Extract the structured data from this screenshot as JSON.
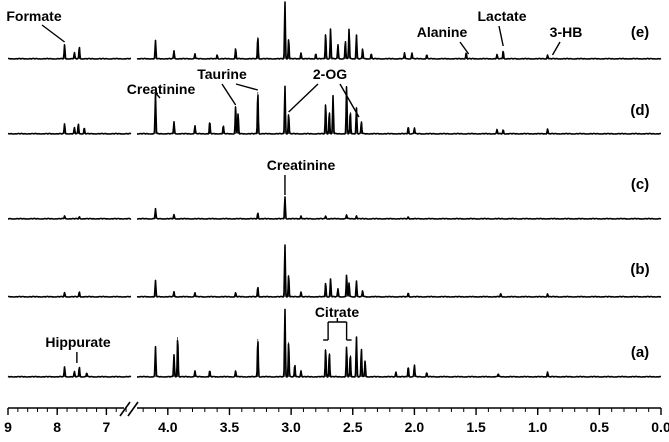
{
  "chart_data": {
    "type": "line",
    "title": "",
    "xlabel": "",
    "ylabel": "",
    "x_axis": {
      "reversed": true,
      "broken": true,
      "segments": [
        {
          "from": 9.0,
          "to": 6.5,
          "ticks": [
            "9",
            "8",
            "7"
          ],
          "tick_values": [
            9,
            8,
            7
          ]
        },
        {
          "from": 4.25,
          "to": 0.0,
          "ticks": [
            "4.0",
            "3.5",
            "3.0",
            "2.5",
            "2.0",
            "1.5",
            "1.0",
            "0.5",
            "0.0"
          ],
          "tick_values": [
            4.0,
            3.5,
            3.0,
            2.5,
            2.0,
            1.5,
            1.0,
            0.5,
            0.0
          ]
        }
      ]
    },
    "series": [
      {
        "name": "(e)",
        "peaks": [
          [
            7.85,
            14
          ],
          [
            7.65,
            6
          ],
          [
            7.55,
            12
          ],
          [
            4.1,
            18
          ],
          [
            3.95,
            8
          ],
          [
            3.78,
            5
          ],
          [
            3.6,
            4
          ],
          [
            3.45,
            10
          ],
          [
            3.27,
            22
          ],
          [
            3.05,
            57
          ],
          [
            3.02,
            20
          ],
          [
            2.92,
            6
          ],
          [
            2.8,
            5
          ],
          [
            2.72,
            25
          ],
          [
            2.68,
            30
          ],
          [
            2.62,
            14
          ],
          [
            2.56,
            18
          ],
          [
            2.53,
            30
          ],
          [
            2.47,
            24
          ],
          [
            2.42,
            10
          ],
          [
            2.35,
            5
          ],
          [
            2.08,
            6
          ],
          [
            2.02,
            6
          ],
          [
            1.9,
            4
          ],
          [
            1.58,
            6
          ],
          [
            1.33,
            4
          ],
          [
            1.28,
            8
          ],
          [
            0.92,
            4
          ]
        ]
      },
      {
        "name": "(d)",
        "peaks": [
          [
            7.85,
            10
          ],
          [
            7.65,
            6
          ],
          [
            7.57,
            10
          ],
          [
            7.45,
            6
          ],
          [
            4.1,
            40
          ],
          [
            3.95,
            12
          ],
          [
            3.78,
            8
          ],
          [
            3.66,
            12
          ],
          [
            3.55,
            8
          ],
          [
            3.45,
            28
          ],
          [
            3.43,
            20
          ],
          [
            3.27,
            42
          ],
          [
            3.05,
            48
          ],
          [
            3.02,
            20
          ],
          [
            2.72,
            30
          ],
          [
            2.69,
            22
          ],
          [
            2.66,
            38
          ],
          [
            2.55,
            48
          ],
          [
            2.52,
            22
          ],
          [
            2.47,
            26
          ],
          [
            2.43,
            12
          ],
          [
            2.05,
            7
          ],
          [
            2.0,
            6
          ],
          [
            1.33,
            4
          ],
          [
            1.28,
            4
          ],
          [
            0.92,
            5
          ]
        ]
      },
      {
        "name": "(c)",
        "peaks": [
          [
            7.85,
            3
          ],
          [
            7.55,
            2
          ],
          [
            4.1,
            10
          ],
          [
            3.95,
            4
          ],
          [
            3.27,
            6
          ],
          [
            3.05,
            22
          ],
          [
            2.92,
            3
          ],
          [
            2.72,
            3
          ],
          [
            2.55,
            4
          ],
          [
            2.47,
            3
          ],
          [
            2.05,
            2
          ]
        ]
      },
      {
        "name": "(b)",
        "peaks": [
          [
            7.85,
            4
          ],
          [
            7.55,
            5
          ],
          [
            4.1,
            16
          ],
          [
            3.95,
            5
          ],
          [
            3.78,
            4
          ],
          [
            3.45,
            4
          ],
          [
            3.27,
            10
          ],
          [
            3.05,
            52
          ],
          [
            3.02,
            22
          ],
          [
            2.92,
            5
          ],
          [
            2.72,
            14
          ],
          [
            2.68,
            18
          ],
          [
            2.62,
            8
          ],
          [
            2.55,
            22
          ],
          [
            2.53,
            14
          ],
          [
            2.47,
            16
          ],
          [
            2.42,
            6
          ],
          [
            2.05,
            4
          ],
          [
            1.3,
            3
          ],
          [
            0.92,
            3
          ]
        ]
      },
      {
        "name": "(a)",
        "peaks": [
          [
            7.85,
            10
          ],
          [
            7.55,
            10
          ],
          [
            7.65,
            5
          ],
          [
            7.4,
            4
          ],
          [
            4.1,
            30
          ],
          [
            3.95,
            22
          ],
          [
            3.92,
            40
          ],
          [
            3.78,
            6
          ],
          [
            3.66,
            6
          ],
          [
            3.45,
            6
          ],
          [
            3.27,
            38
          ],
          [
            3.05,
            68
          ],
          [
            3.02,
            35
          ],
          [
            2.97,
            12
          ],
          [
            2.92,
            6
          ],
          [
            2.72,
            28
          ],
          [
            2.69,
            24
          ],
          [
            2.55,
            30
          ],
          [
            2.52,
            22
          ],
          [
            2.47,
            40
          ],
          [
            2.43,
            28
          ],
          [
            2.4,
            16
          ],
          [
            2.15,
            5
          ],
          [
            2.05,
            10
          ],
          [
            2.0,
            12
          ],
          [
            1.9,
            4
          ],
          [
            1.32,
            3
          ],
          [
            0.92,
            5
          ]
        ]
      }
    ],
    "annotations": [
      {
        "panel": "(e)",
        "text": "Formate",
        "ppm": 7.85
      },
      {
        "panel": "(e)",
        "text": "Alanine",
        "ppm": 1.48
      },
      {
        "panel": "(e)",
        "text": "Lactate",
        "ppm": 1.28
      },
      {
        "panel": "(e)",
        "text": "3-HB",
        "ppm": 0.88
      },
      {
        "panel": "(d)",
        "text": "Creatinine",
        "ppm": 4.05
      },
      {
        "panel": "(d)",
        "text": "Taurine",
        "ppm": 3.35
      },
      {
        "panel": "(d)",
        "text": "2-OG",
        "ppm": 2.75
      },
      {
        "panel": "(c)",
        "text": "Creatinine",
        "ppm": 3.05
      },
      {
        "panel": "(a)",
        "text": "Hippurate",
        "ppm": 7.6
      },
      {
        "panel": "(a)",
        "text": "Citrate",
        "ppm": 2.6
      }
    ]
  }
}
